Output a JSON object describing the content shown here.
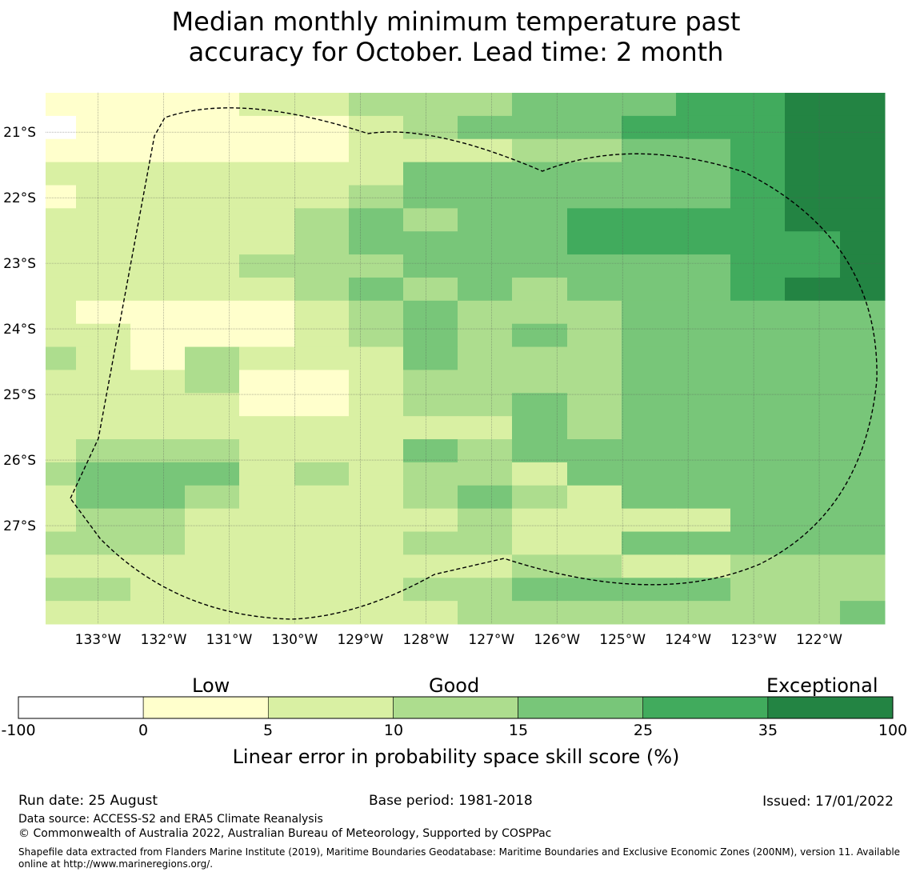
{
  "title": {
    "line1": "Median monthly minimum temperature past",
    "line2": "accuracy for October. Lead time: 2 month"
  },
  "map": {
    "lon_labels": [
      "133°W",
      "132°W",
      "131°W",
      "130°W",
      "129°W",
      "128°W",
      "127°W",
      "126°W",
      "125°W",
      "124°W",
      "123°W",
      "122°W"
    ],
    "lon_values": [
      -133,
      -132,
      -131,
      -130,
      -129,
      -128,
      -127,
      -126,
      -125,
      -124,
      -123,
      -122
    ],
    "lat_labels": [
      "21°S",
      "22°S",
      "23°S",
      "24°S",
      "25°S",
      "26°S",
      "27°S"
    ],
    "lat_values": [
      -21,
      -22,
      -23,
      -24,
      -25,
      -26,
      -27
    ],
    "lon_range": [
      -133.8,
      -121.0
    ],
    "lat_range": [
      -28.5,
      -20.4
    ],
    "class_colors": [
      "#ffffff",
      "#ffffcc",
      "#d9f0a3",
      "#addd8e",
      "#78c679",
      "#41ab5d",
      "#238443"
    ],
    "grid_rows": [
      "1111223334445566",
      "0111112344455566",
      "1111112223344566",
      "2222222444444566",
      "1222223444444566",
      "2222234344555566",
      "2222234444555556",
      "2222333444444556",
      "2222234343444566",
      "2111123433344444",
      "2211123434344444",
      "3213222433344444",
      "2223112333344444",
      "2222112334344444",
      "2222222224344444",
      "2333222434444444",
      "3444232332444444",
      "2443222343244444",
      "2332222232222444",
      "3332222332244444",
      "2222222223322333",
      "3322222334444333",
      "2222222233333334"
    ]
  },
  "colorbar": {
    "categories": [
      "Low",
      "Good",
      "Exceptional"
    ],
    "ticks": [
      "-100",
      "0",
      "5",
      "10",
      "15",
      "25",
      "35",
      "100"
    ],
    "label": "Linear error in probability space skill score (%)",
    "colors": [
      "#ffffff",
      "#ffffcc",
      "#d9f0a3",
      "#addd8e",
      "#78c679",
      "#41ab5d",
      "#238443"
    ]
  },
  "footer": {
    "run_date": "Run date: 25 August",
    "base_period": "Base period: 1981-2018",
    "issued": "Issued: 17/01/2022",
    "data_source": "Data source: ACCESS-S2 and ERA5 Climate Reanalysis",
    "copyright": "© Commonwealth of Australia 2022, Australian Bureau of Meteorology, Supported by COSPPac",
    "shapefile_note": "Shapefile data extracted from Flanders Marine Institute (2019), Maritime Boundaries Geodatabase: Maritime Boundaries and Exclusive Economic Zones (200NM), version 11. Available online at http://www.marineregions.org/."
  }
}
